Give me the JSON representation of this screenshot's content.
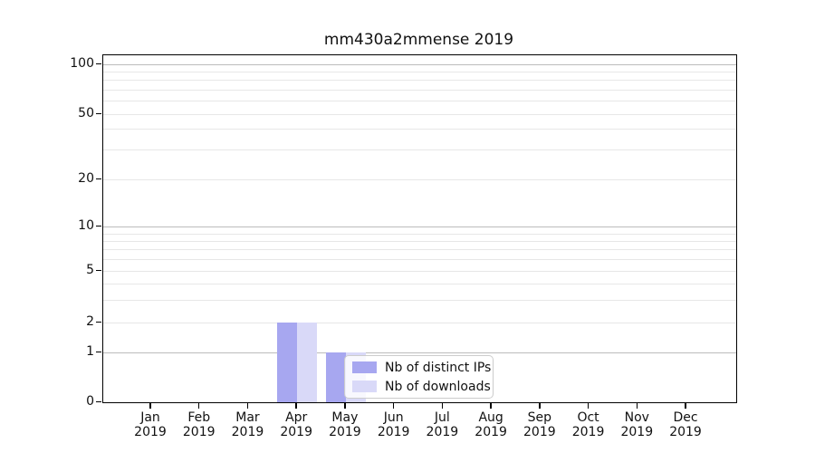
{
  "title": "mm430a2mmense 2019",
  "chart_data": {
    "type": "bar",
    "title": "mm430a2mmense 2019",
    "categories": [
      "Jan",
      "Feb",
      "Mar",
      "Apr",
      "May",
      "Jun",
      "Jul",
      "Aug",
      "Sep",
      "Oct",
      "Nov",
      "Dec"
    ],
    "category_year": "2019",
    "series": [
      {
        "name": "Nb of distinct IPs",
        "color": "#a7a7f0",
        "values": [
          0,
          0,
          0,
          2,
          1,
          0,
          0,
          0,
          0,
          0,
          0,
          0
        ]
      },
      {
        "name": "Nb of downloads",
        "color": "#d9d9f8",
        "values": [
          0,
          0,
          0,
          2,
          1,
          0,
          0,
          0,
          0,
          0,
          0,
          0
        ]
      }
    ],
    "xlabel": "",
    "ylabel": "",
    "y_ticks": [
      0,
      1,
      2,
      5,
      10,
      20,
      50,
      100
    ],
    "y_major_ticks": [
      1,
      10,
      100
    ],
    "yscale": "symlog",
    "ylim": [
      0,
      115
    ],
    "grid": "horizontal",
    "legend_position": "lower center-left inside plot"
  },
  "legend": {
    "items": [
      {
        "label": "Nb of distinct IPs",
        "color": "#a7a7f0"
      },
      {
        "label": "Nb of downloads",
        "color": "#d9d9f8"
      }
    ]
  },
  "colors": {
    "bar_distinct_ips": "#a7a7f0",
    "bar_downloads": "#d9d9f8",
    "gridline_major": "#bcbcbc",
    "gridline_minor": "#e7e7e7",
    "spine": "#000000"
  }
}
